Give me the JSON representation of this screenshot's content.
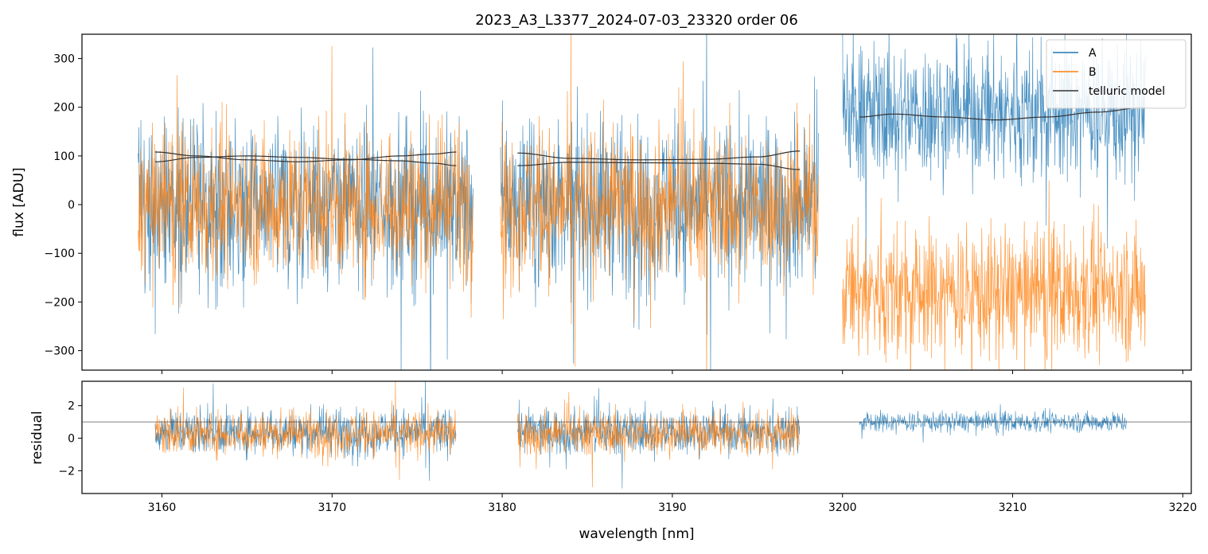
{
  "chart_data": [
    {
      "type": "line",
      "panel": "flux",
      "title": "2023_A3_L3377_2024-07-03_23320  order 06",
      "xlabel": "",
      "ylabel": "flux [ADU]",
      "xlim": [
        3155.3,
        3220.5
      ],
      "ylim": [
        -340,
        350
      ],
      "xticks": [
        3160,
        3170,
        3180,
        3190,
        3200,
        3210,
        3220
      ],
      "yticks": [
        -300,
        -200,
        -100,
        0,
        100,
        200,
        300
      ],
      "ytick_labels": [
        "−300",
        "−200",
        "−100",
        "0",
        "100",
        "200",
        "300"
      ],
      "legend": {
        "position": "top-right",
        "entries": [
          {
            "label": "A",
            "color": "#1f77b4"
          },
          {
            "label": "B",
            "color": "#ff7f0e"
          },
          {
            "label": "telluric model",
            "color": "#333333"
          }
        ]
      },
      "series": [
        {
          "name": "A",
          "color": "#1f77b4",
          "segments": [
            {
              "x_range": [
                3158.6,
                3178.3
              ],
              "center": 0,
              "spread": 120
            },
            {
              "x_range": [
                3179.9,
                3198.6
              ],
              "center": 0,
              "spread": 120
            },
            {
              "x_range": [
                3200.0,
                3217.8
              ],
              "center": 190,
              "spread": 100
            }
          ]
        },
        {
          "name": "B",
          "color": "#ff7f0e",
          "segments": [
            {
              "x_range": [
                3158.6,
                3178.3
              ],
              "center": 0,
              "spread": 110
            },
            {
              "x_range": [
                3179.9,
                3198.6
              ],
              "center": 0,
              "spread": 110
            },
            {
              "x_range": [
                3200.0,
                3217.8
              ],
              "center": -180,
              "spread": 95
            }
          ]
        },
        {
          "name": "telluric model",
          "color": "#333333",
          "curves": [
            {
              "x": [
                3159.6,
                3162.0,
                3165.0,
                3168.0,
                3171.0,
                3174.0,
                3176.0,
                3177.3
              ],
              "y": [
                88,
                97,
                100,
                97,
                93,
                90,
                85,
                80
              ]
            },
            {
              "x": [
                3159.6,
                3162.0,
                3165.0,
                3168.0,
                3171.0,
                3174.0,
                3176.0,
                3177.3
              ],
              "y": [
                108,
                100,
                92,
                88,
                92,
                100,
                104,
                108
              ]
            },
            {
              "x": [
                3180.9,
                3184.0,
                3188.0,
                3192.0,
                3195.0,
                3197.5
              ],
              "y": [
                80,
                87,
                86,
                85,
                83,
                72
              ]
            },
            {
              "x": [
                3180.9,
                3184.0,
                3188.0,
                3192.0,
                3195.0,
                3197.5
              ],
              "y": [
                106,
                95,
                92,
                93,
                98,
                110
              ]
            },
            {
              "x": [
                3201.0,
                3203.0,
                3206.0,
                3209.0,
                3212.0,
                3215.0,
                3217.8
              ],
              "y": [
                180,
                186,
                180,
                174,
                180,
                190,
                200
              ]
            }
          ]
        }
      ]
    },
    {
      "type": "line",
      "panel": "residual",
      "title": "",
      "xlabel": "wavelength [nm]",
      "ylabel": "residual",
      "xlim": [
        3155.3,
        3220.5
      ],
      "ylim": [
        -3.4,
        3.5
      ],
      "xticks": [
        3160,
        3170,
        3180,
        3190,
        3200,
        3210,
        3220
      ],
      "xtick_labels": [
        "3160",
        "3170",
        "3180",
        "3190",
        "3200",
        "3210",
        "3220"
      ],
      "yticks": [
        -2,
        0,
        2
      ],
      "ytick_labels": [
        "−2",
        "0",
        "2"
      ],
      "reference_line": 1,
      "series": [
        {
          "name": "A",
          "color": "#1f77b4",
          "segments": [
            {
              "x_range": [
                3159.6,
                3177.3
              ],
              "center": 0.4,
              "spread": 1.0
            },
            {
              "x_range": [
                3180.9,
                3197.5
              ],
              "center": 0.4,
              "spread": 1.0
            },
            {
              "x_range": [
                3201.0,
                3216.7
              ],
              "center": 1.0,
              "spread": 0.45
            }
          ]
        },
        {
          "name": "B",
          "color": "#ff7f0e",
          "segments": [
            {
              "x_range": [
                3159.6,
                3177.3
              ],
              "center": 0.3,
              "spread": 0.95
            },
            {
              "x_range": [
                3180.9,
                3197.5
              ],
              "center": 0.3,
              "spread": 0.95
            }
          ]
        }
      ]
    }
  ]
}
